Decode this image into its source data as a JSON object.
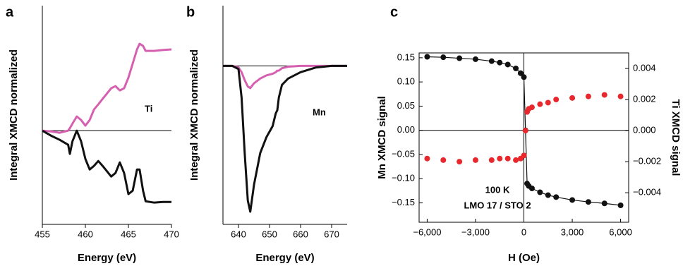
{
  "chart_data": [
    {
      "type": "line",
      "panel_label": "a",
      "xlabel": "Energy (eV)",
      "ylabel": "Integral XMCD normalized",
      "annotations": [
        "Ti"
      ],
      "x": [
        455,
        456,
        457,
        458,
        458.2,
        458.5,
        459,
        459.5,
        460,
        460.5,
        461,
        461.5,
        462,
        463,
        463.5,
        464,
        464.5,
        465,
        465.5,
        466,
        466.3,
        466.7,
        467,
        468,
        469,
        470
      ],
      "series": [
        {
          "color": "#d660b0",
          "values": [
            0,
            -0.006,
            -0.017,
            0,
            0.02,
            0.056,
            0.113,
            0.085,
            0.04,
            0.085,
            0.169,
            0.21,
            0.254,
            0.339,
            0.356,
            0.322,
            0.339,
            0.424,
            0.537,
            0.65,
            0.695,
            0.678,
            0.638,
            0.638,
            0.645,
            0.65
          ]
        },
        {
          "color": "#111111",
          "values": [
            0,
            -0.04,
            -0.073,
            -0.113,
            -0.186,
            -0.085,
            0,
            -0.085,
            -0.226,
            -0.311,
            -0.282,
            -0.243,
            -0.282,
            -0.367,
            -0.339,
            -0.254,
            -0.339,
            -0.508,
            -0.48,
            -0.311,
            -0.311,
            -0.48,
            -0.565,
            -0.576,
            -0.571,
            -0.571
          ]
        }
      ],
      "xlim": [
        455,
        470
      ],
      "xticks": [
        455,
        460,
        465,
        470
      ],
      "ylim": [
        -0.75,
        1
      ],
      "hline": 0
    },
    {
      "type": "line",
      "panel_label": "b",
      "xlabel": "Energy (eV)",
      "ylabel": "Integral XMCD normalized",
      "annotations": [
        "Mn"
      ],
      "x": [
        635,
        638,
        640,
        641,
        642,
        643,
        643.8,
        645,
        647,
        649,
        651,
        652,
        652.5,
        653,
        654,
        656,
        660,
        665,
        670,
        675
      ],
      "series": [
        {
          "color": "#d660b0",
          "values": [
            0,
            0,
            -0.01,
            -0.04,
            -0.09,
            -0.13,
            -0.14,
            -0.11,
            -0.08,
            -0.06,
            -0.05,
            -0.04,
            -0.03,
            -0.03,
            -0.015,
            -0.005,
            0,
            0,
            0,
            0
          ]
        },
        {
          "color": "#111111",
          "values": [
            0,
            0,
            -0.02,
            -0.2,
            -0.55,
            -0.85,
            -0.92,
            -0.75,
            -0.55,
            -0.45,
            -0.38,
            -0.3,
            -0.28,
            -0.2,
            -0.12,
            -0.08,
            -0.04,
            -0.01,
            0,
            0
          ]
        }
      ],
      "xlim": [
        635,
        675
      ],
      "xticks": [
        640,
        650,
        660,
        670
      ],
      "ylim": [
        -1,
        0.38
      ],
      "hline": 0
    },
    {
      "type": "scatter",
      "panel_label": "c",
      "xlabel": "H (Oe)",
      "ylabel": "Mn XMCD signal",
      "y2label": "Ti XMCD signal",
      "annotations": [
        "100 K",
        "LMO 17 / STO 2"
      ],
      "x": [
        -6000,
        -5000,
        -4000,
        -3000,
        -2000,
        -1500,
        -1000,
        -500,
        -200,
        0,
        100,
        200,
        300,
        500,
        1000,
        1500,
        2000,
        3000,
        4000,
        5000,
        6000
      ],
      "series": [
        {
          "color": "#111111",
          "values": [
            0.152,
            0.151,
            0.149,
            0.147,
            0.143,
            0.14,
            0.136,
            0.128,
            0.118,
            0.11,
            0,
            -0.11,
            -0.115,
            -0.12,
            -0.128,
            -0.134,
            -0.138,
            -0.144,
            -0.148,
            -0.151,
            -0.155
          ]
        },
        {
          "color": "#e8282c",
          "axis": "y2",
          "values": [
            -0.0018,
            -0.0019,
            -0.002,
            -0.0019,
            -0.0019,
            -0.0018,
            -0.0018,
            -0.0019,
            -0.0018,
            -0.0016,
            0,
            0.0012,
            0.0014,
            0.0015,
            0.0017,
            0.0018,
            0.002,
            0.0021,
            0.0022,
            0.0023,
            0.0022
          ]
        }
      ],
      "xlim": [
        -6500,
        6500
      ],
      "xticks": [
        {
          "value": -6000,
          "label": "−6,000"
        },
        {
          "value": -3000,
          "label": "−3,000"
        },
        0,
        {
          "value": 3000,
          "label": "3,000"
        },
        {
          "value": 6000,
          "label": "6,000"
        }
      ],
      "ylim": [
        -0.19,
        0.16
      ],
      "yticks": [
        {
          "value": -0.15,
          "label": "−0.15"
        },
        {
          "value": -0.1,
          "label": "−0.10"
        },
        {
          "value": -0.05,
          "label": "−0.05"
        },
        {
          "value": 0,
          "label": "0.00"
        },
        {
          "value": 0.05,
          "label": "0.05"
        },
        {
          "value": 0.1,
          "label": "0.10"
        },
        0.15
      ],
      "y2lim": [
        -0.0059,
        0.005
      ],
      "y2ticks": [
        {
          "value": -0.004,
          "label": "−0.004"
        },
        {
          "value": -0.002,
          "label": "−0.002"
        },
        {
          "value": 0,
          "label": "0.000"
        },
        0.002,
        0.004
      ],
      "hline": 0,
      "vline": 0,
      "box": true
    }
  ]
}
